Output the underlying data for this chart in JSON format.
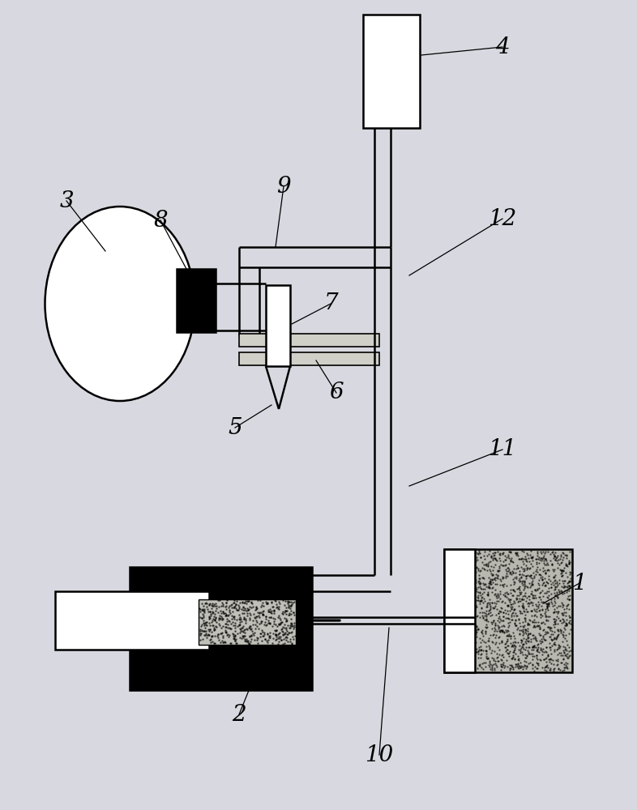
{
  "bg_color": "#d8d8e0",
  "line_color": "#000000",
  "label_color": "#000000",
  "lw": 1.8,
  "fig_w": 7.86,
  "fig_h": 10.0,
  "dpi": 100
}
